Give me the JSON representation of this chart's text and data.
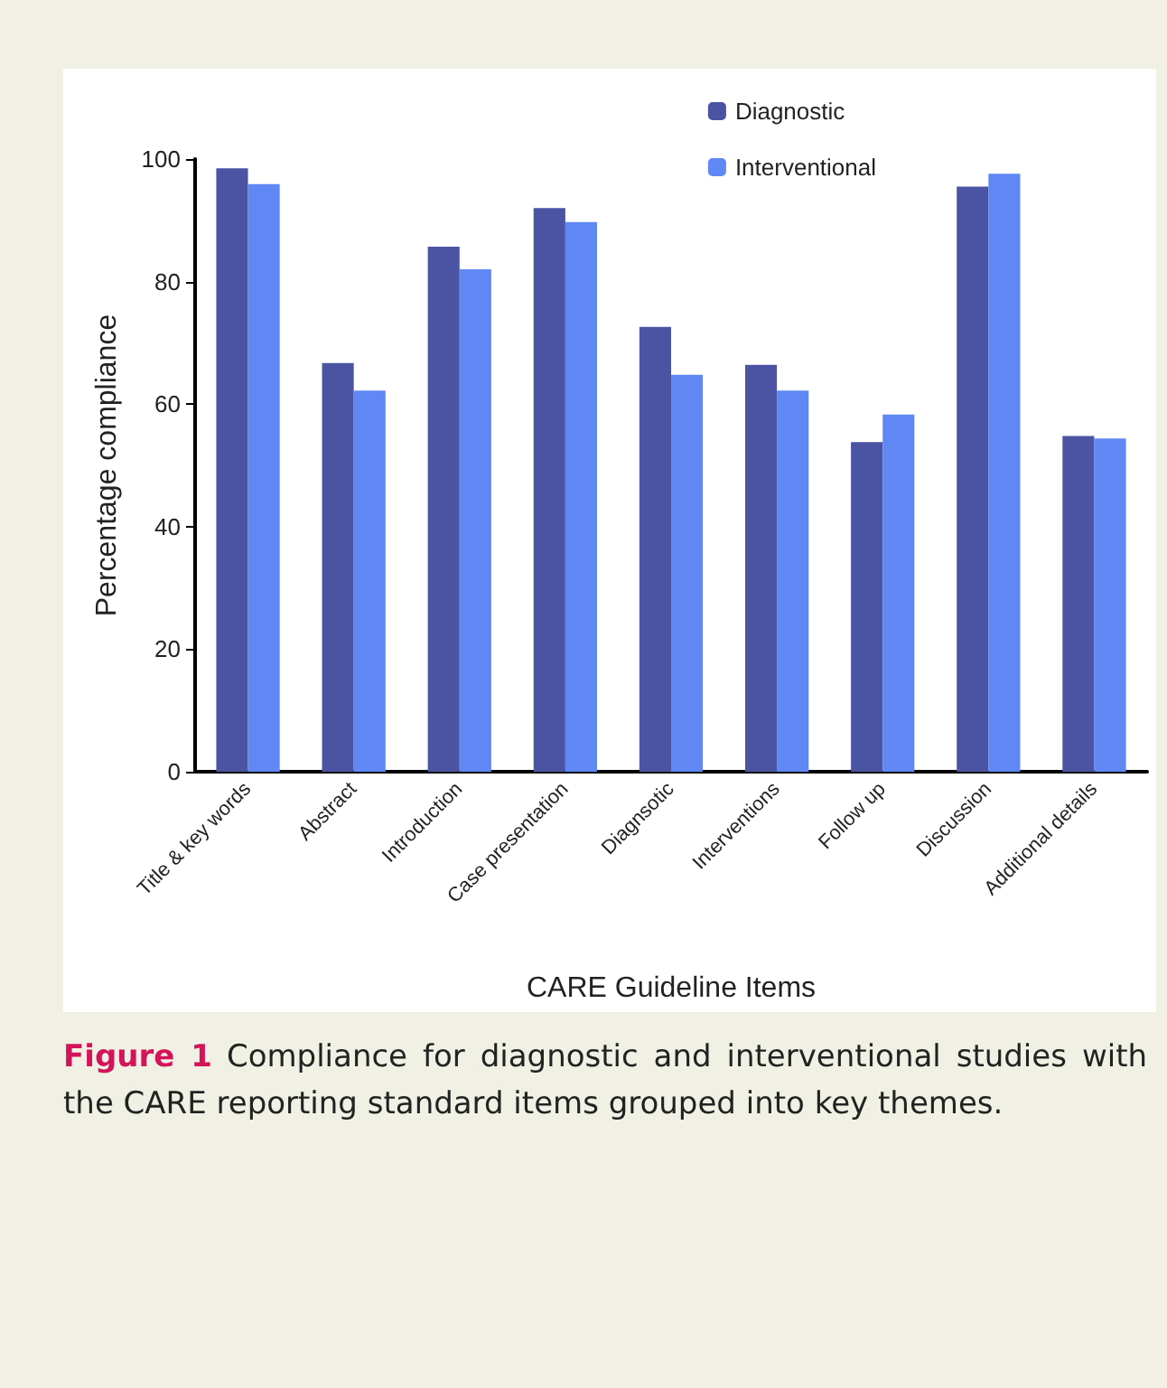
{
  "chart_data": {
    "type": "bar",
    "xlabel": "CARE Guideline Items",
    "ylabel": "Percentage compliance",
    "categories": [
      "Title & key words",
      "Abstract",
      "Introduction",
      "Case presentation",
      "Diagnsotic",
      "Interventions",
      "Follow up",
      "Discussion",
      "Additional details"
    ],
    "series": [
      {
        "name": "Diagnostic",
        "color": "#4b53a3",
        "values": [
          98.5,
          66.7,
          85.7,
          92.0,
          72.6,
          66.4,
          53.8,
          95.5,
          54.8
        ]
      },
      {
        "name": "Interventional",
        "color": "#6088f5",
        "values": [
          95.9,
          62.2,
          82.0,
          89.7,
          64.8,
          62.2,
          58.3,
          97.6,
          54.4
        ]
      }
    ],
    "ylim": [
      0,
      100
    ],
    "yticks": [
      0,
      20,
      40,
      60,
      80,
      100
    ],
    "grid": false,
    "legend": "top right",
    "annotations": [
      "Figure 1",
      "Compliance for diagnostic and interventional studies with the CARE reporting standard items grouped into key themes."
    ]
  }
}
